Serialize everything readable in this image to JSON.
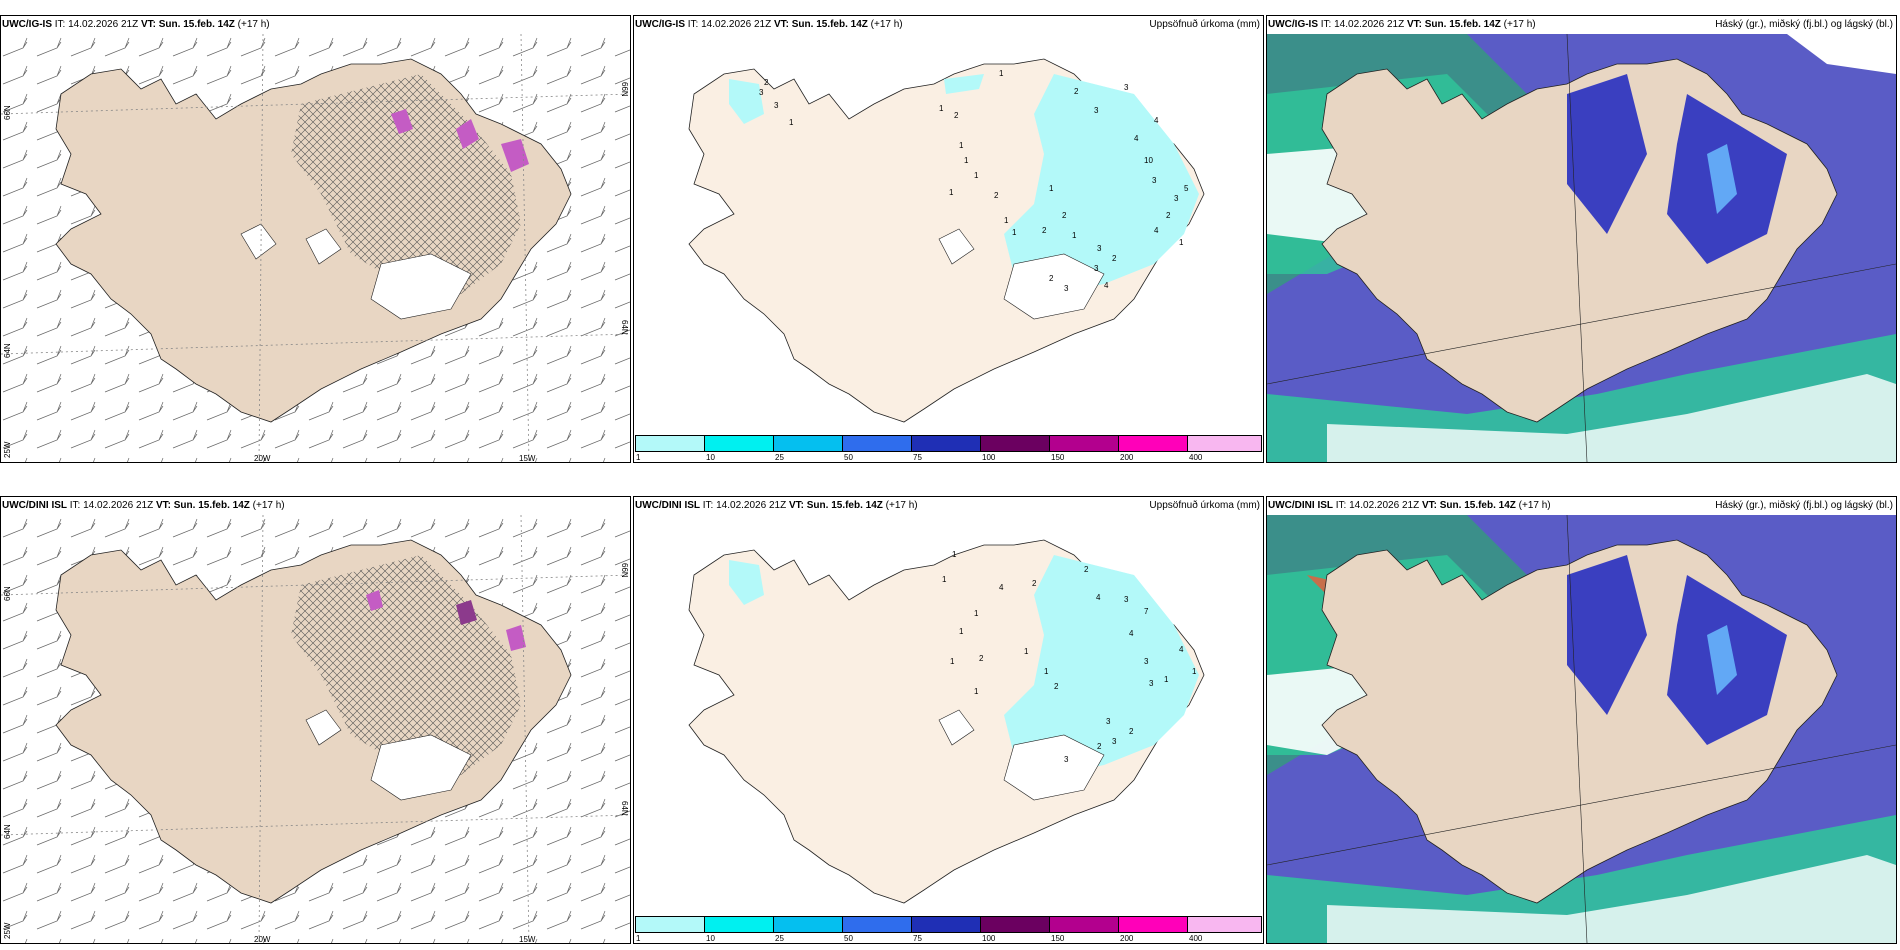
{
  "rows": [
    {
      "model": "UWC/IG-IS",
      "it_label": "IT:",
      "it_value": "14.02.2026 21Z",
      "vt_label": "VT:",
      "vt_value": "Sun. 15.feb. 14Z",
      "lead": "(+17 h)",
      "precip_numbers": [
        "1",
        "2",
        "3",
        "4",
        "3",
        "1",
        "2",
        "1",
        "1",
        "1",
        "1",
        "1",
        "2",
        "1",
        "1",
        "2",
        "2",
        "1",
        "4",
        "10",
        "3",
        "2",
        "5",
        "3",
        "4",
        "1",
        "3",
        "2",
        "3",
        "4",
        "2",
        "3",
        "3",
        "3",
        "1",
        "2"
      ]
    },
    {
      "model": "UWC/DINI ISL",
      "it_label": "IT:",
      "it_value": "14.02.2026 21Z",
      "vt_label": "VT:",
      "vt_value": "Sun. 15.feb. 14Z",
      "lead": "(+17 h)",
      "precip_numbers": [
        "1",
        "4",
        "2",
        "2",
        "4",
        "3",
        "7",
        "1",
        "1",
        "1",
        "1",
        "2",
        "1",
        "4",
        "3",
        "2",
        "1",
        "1",
        "3",
        "3",
        "2",
        "3",
        "2",
        "4",
        "1",
        "1",
        "3"
      ]
    }
  ],
  "precip_panel": {
    "title": "Uppsöfnuð úrkoma (mm)",
    "colorbar": {
      "colors": [
        "#b3f9f9",
        "#00f0f0",
        "#05bfef",
        "#2f6ded",
        "#1f2fb5",
        "#6b0060",
        "#b3008e",
        "#ff00b9",
        "#f8b7f0"
      ],
      "ticks": [
        "1",
        "10",
        "25",
        "50",
        "75",
        "100",
        "150",
        "200",
        "400"
      ]
    }
  },
  "cloud_panel": {
    "title": "Háský (gr.), miðský (fj.bl.) og lágský (bl.)"
  },
  "wind_panel": {
    "lat_labels": [
      "66N",
      "64N"
    ],
    "lon_labels": [
      "20W",
      "15W"
    ],
    "corner_label": "25W"
  },
  "colors": {
    "land": "#e8d6c3",
    "land_light": "#faefe3",
    "precip_light": "#b3f9f9",
    "cloud_high": "#5a5cc6",
    "cloud_mid": "#2f6ded",
    "cloud_low": "#2fc79a",
    "hatch": "#555555"
  }
}
